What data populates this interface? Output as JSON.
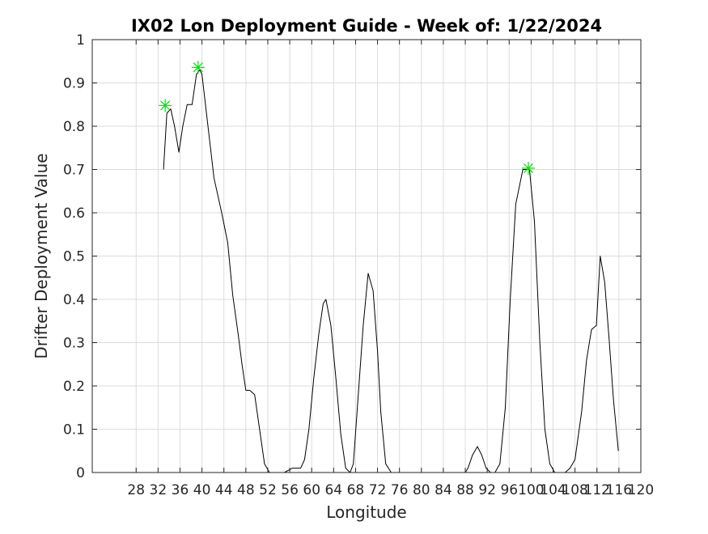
{
  "chart_data": {
    "type": "line",
    "title": "IX02 Lon Deployment Guide - Week of: 1/22/2024",
    "xlabel": "Longitude",
    "ylabel": "Drifter Deployment Value",
    "xlim": [
      20,
      120
    ],
    "ylim": [
      0,
      1
    ],
    "x_ticks": [
      28,
      32,
      36,
      40,
      44,
      48,
      52,
      56,
      60,
      64,
      68,
      72,
      76,
      80,
      84,
      88,
      92,
      96,
      100,
      104,
      108,
      112,
      116,
      120
    ],
    "x_tick_labels": [
      "28",
      "32",
      "36",
      "40",
      "44",
      "48",
      "52",
      "56",
      "60",
      "64",
      "68",
      "72",
      "76",
      "80",
      "84",
      "88",
      "92",
      "96",
      "100",
      "104",
      "108",
      "112",
      "116",
      "120"
    ],
    "y_ticks": [
      0,
      0.1,
      0.2,
      0.3,
      0.4,
      0.5,
      0.6,
      0.7,
      0.8,
      0.9,
      1
    ],
    "y_tick_labels": [
      "0",
      "0.1",
      "0.2",
      "0.3",
      "0.4",
      "0.5",
      "0.6",
      "0.7",
      "0.8",
      "0.9",
      "1"
    ],
    "grid": true,
    "line_color": "#000000",
    "marker_color": "#00e000",
    "series": [
      {
        "x": [
          33.0,
          33.6,
          34.3,
          35.0,
          35.8,
          36.5,
          37.3,
          38.2,
          39.0,
          39.6,
          40.0,
          41.0,
          42.2,
          43.6,
          44.7,
          45.6,
          46.6,
          47.3,
          48.0,
          48.7,
          49.6,
          50.5,
          51.4,
          52.3,
          53.0,
          55.0,
          56.5,
          57.5,
          58.0,
          58.7,
          59.5,
          60.4,
          61.3,
          62.1,
          62.6,
          63.5,
          64.4,
          65.3,
          66.2,
          67.0,
          67.6,
          68.5,
          69.4,
          70.3,
          71.2,
          72.0,
          72.6,
          73.5,
          74.5,
          88.0,
          88.5,
          89.3,
          90.2,
          91.0,
          91.8,
          92.6,
          93.4,
          94.3,
          95.3,
          96.2,
          97.2,
          98.5,
          99.7,
          100.6,
          101.6,
          102.5,
          103.4,
          104.3,
          105.2,
          106.2,
          107.1,
          108.0,
          109.2,
          110.1,
          111.0,
          111.9,
          112.6,
          113.4,
          114.2,
          115.0,
          115.9
        ],
        "y": [
          0.7,
          0.83,
          0.84,
          0.8,
          0.74,
          0.8,
          0.85,
          0.85,
          0.92,
          0.93,
          0.92,
          0.81,
          0.68,
          0.6,
          0.53,
          0.41,
          0.32,
          0.25,
          0.19,
          0.19,
          0.18,
          0.1,
          0.02,
          0.0,
          0.0,
          0.0,
          0.01,
          0.01,
          0.01,
          0.03,
          0.1,
          0.22,
          0.32,
          0.39,
          0.4,
          0.34,
          0.22,
          0.09,
          0.01,
          0.0,
          0.02,
          0.18,
          0.34,
          0.46,
          0.42,
          0.28,
          0.14,
          0.02,
          0.0,
          0.0,
          0.01,
          0.04,
          0.06,
          0.04,
          0.01,
          0.0,
          0.0,
          0.02,
          0.15,
          0.4,
          0.62,
          0.7,
          0.7,
          0.58,
          0.3,
          0.1,
          0.02,
          0.0,
          0.0,
          0.0,
          0.01,
          0.03,
          0.14,
          0.26,
          0.33,
          0.34,
          0.5,
          0.44,
          0.31,
          0.17,
          0.05
        ]
      }
    ],
    "markers": [
      {
        "x": 33.3,
        "y": 0.848
      },
      {
        "x": 39.3,
        "y": 0.936
      },
      {
        "x": 99.5,
        "y": 0.703
      }
    ]
  }
}
